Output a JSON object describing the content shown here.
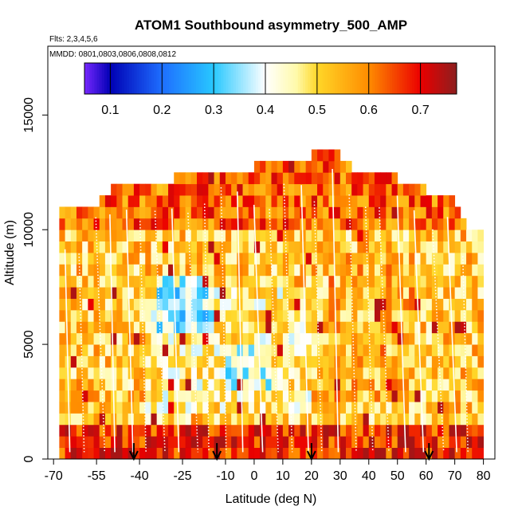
{
  "chart_data": {
    "type": "heatmap",
    "title": "ATOM1 Southbound asymmetry_500_AMP",
    "subtitle_flights": "Flts: 2,3,4,5,6",
    "subtitle_dates": "MMDD: 0801,0803,0806,0808,0812",
    "xlabel": "Latitude (deg N)",
    "ylabel": "Altitude (m)",
    "xlim": [
      -72,
      84
    ],
    "ylim": [
      0,
      18000
    ],
    "x_ticks": [
      -70,
      -55,
      -40,
      -25,
      -10,
      0,
      10,
      20,
      30,
      40,
      50,
      60,
      70,
      80
    ],
    "y_ticks": [
      0,
      5000,
      10000,
      15000
    ],
    "x_tick_labels": [
      "-70",
      "-55",
      "-40",
      "-25",
      "-10",
      "0",
      "10",
      "20",
      "30",
      "40",
      "50",
      "60",
      "70",
      "80"
    ],
    "y_tick_labels": [
      "0",
      "5000",
      "10000",
      "15000"
    ],
    "colorbar": {
      "range": [
        0.05,
        0.77
      ],
      "ticks": [
        0.1,
        0.2,
        0.3,
        0.4,
        0.5,
        0.6,
        0.7
      ],
      "tick_labels": [
        "0.1",
        "0.2",
        "0.3",
        "0.4",
        "0.5",
        "0.6",
        "0.7"
      ]
    },
    "arrows_latitude": [
      -42,
      -13,
      20,
      61
    ],
    "grid": false,
    "legend_position": "top (colorbar inside plot)"
  }
}
